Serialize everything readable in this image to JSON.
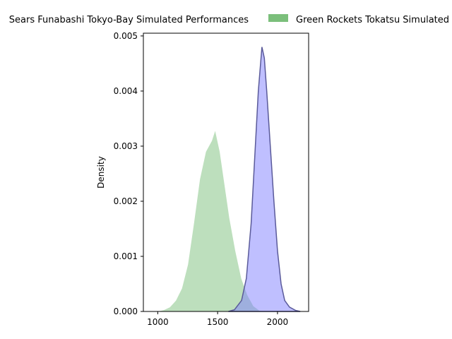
{
  "chart_data": {
    "type": "area",
    "title": "",
    "xlabel": "",
    "ylabel": "Density",
    "xlim": [
      880,
      2260
    ],
    "ylim": [
      0,
      0.00505
    ],
    "x_ticks": [
      1000,
      1500,
      2000
    ],
    "x_tick_labels": [
      "1000",
      "1500",
      "2000"
    ],
    "y_ticks": [
      0,
      0.001,
      0.002,
      0.003,
      0.004,
      0.005
    ],
    "y_tick_labels": [
      "0.000",
      "0.001",
      "0.002",
      "0.003",
      "0.004",
      "0.005"
    ],
    "grid": false,
    "legend_position": "top (above plot, partially clipped)",
    "series": [
      {
        "name": "Green Rockets Tokatsu Simulated Performances",
        "color": "#7bbf7b",
        "fill_opacity": 0.5,
        "points": [
          [
            990,
            0.0
          ],
          [
            1050,
            3e-05
          ],
          [
            1100,
            8e-05
          ],
          [
            1150,
            0.0002
          ],
          [
            1200,
            0.00042
          ],
          [
            1250,
            0.00085
          ],
          [
            1300,
            0.0016
          ],
          [
            1350,
            0.0024
          ],
          [
            1400,
            0.0029
          ],
          [
            1450,
            0.0031
          ],
          [
            1480,
            0.0033
          ],
          [
            1520,
            0.0029
          ],
          [
            1560,
            0.0023
          ],
          [
            1600,
            0.0017
          ],
          [
            1650,
            0.0011
          ],
          [
            1700,
            0.0006
          ],
          [
            1750,
            0.0003
          ],
          [
            1800,
            0.0001
          ],
          [
            1850,
            2e-05
          ],
          [
            1880,
            0.0
          ]
        ]
      },
      {
        "name": "Sears Funabashi Tokyo-Bay Simulated Performances",
        "color": "#8080ff",
        "fill_opacity": 0.5,
        "points": [
          [
            1590,
            0.0
          ],
          [
            1640,
            3e-05
          ],
          [
            1700,
            0.0002
          ],
          [
            1740,
            0.0006
          ],
          [
            1780,
            0.0016
          ],
          [
            1810,
            0.0028
          ],
          [
            1840,
            0.004
          ],
          [
            1870,
            0.0048
          ],
          [
            1890,
            0.0046
          ],
          [
            1910,
            0.004
          ],
          [
            1940,
            0.003
          ],
          [
            1970,
            0.002
          ],
          [
            2000,
            0.0011
          ],
          [
            2030,
            0.0005
          ],
          [
            2060,
            0.0002
          ],
          [
            2100,
            8e-05
          ],
          [
            2150,
            2e-05
          ],
          [
            2190,
            0.0
          ]
        ]
      }
    ]
  },
  "legend": {
    "items": [
      {
        "label": "Sears Funabashi Tokyo-Bay Simulated Performances",
        "color": "#8080ff"
      },
      {
        "label": "Green Rockets Tokatsu Simulated Performances",
        "color": "#7bbf7b"
      }
    ]
  }
}
